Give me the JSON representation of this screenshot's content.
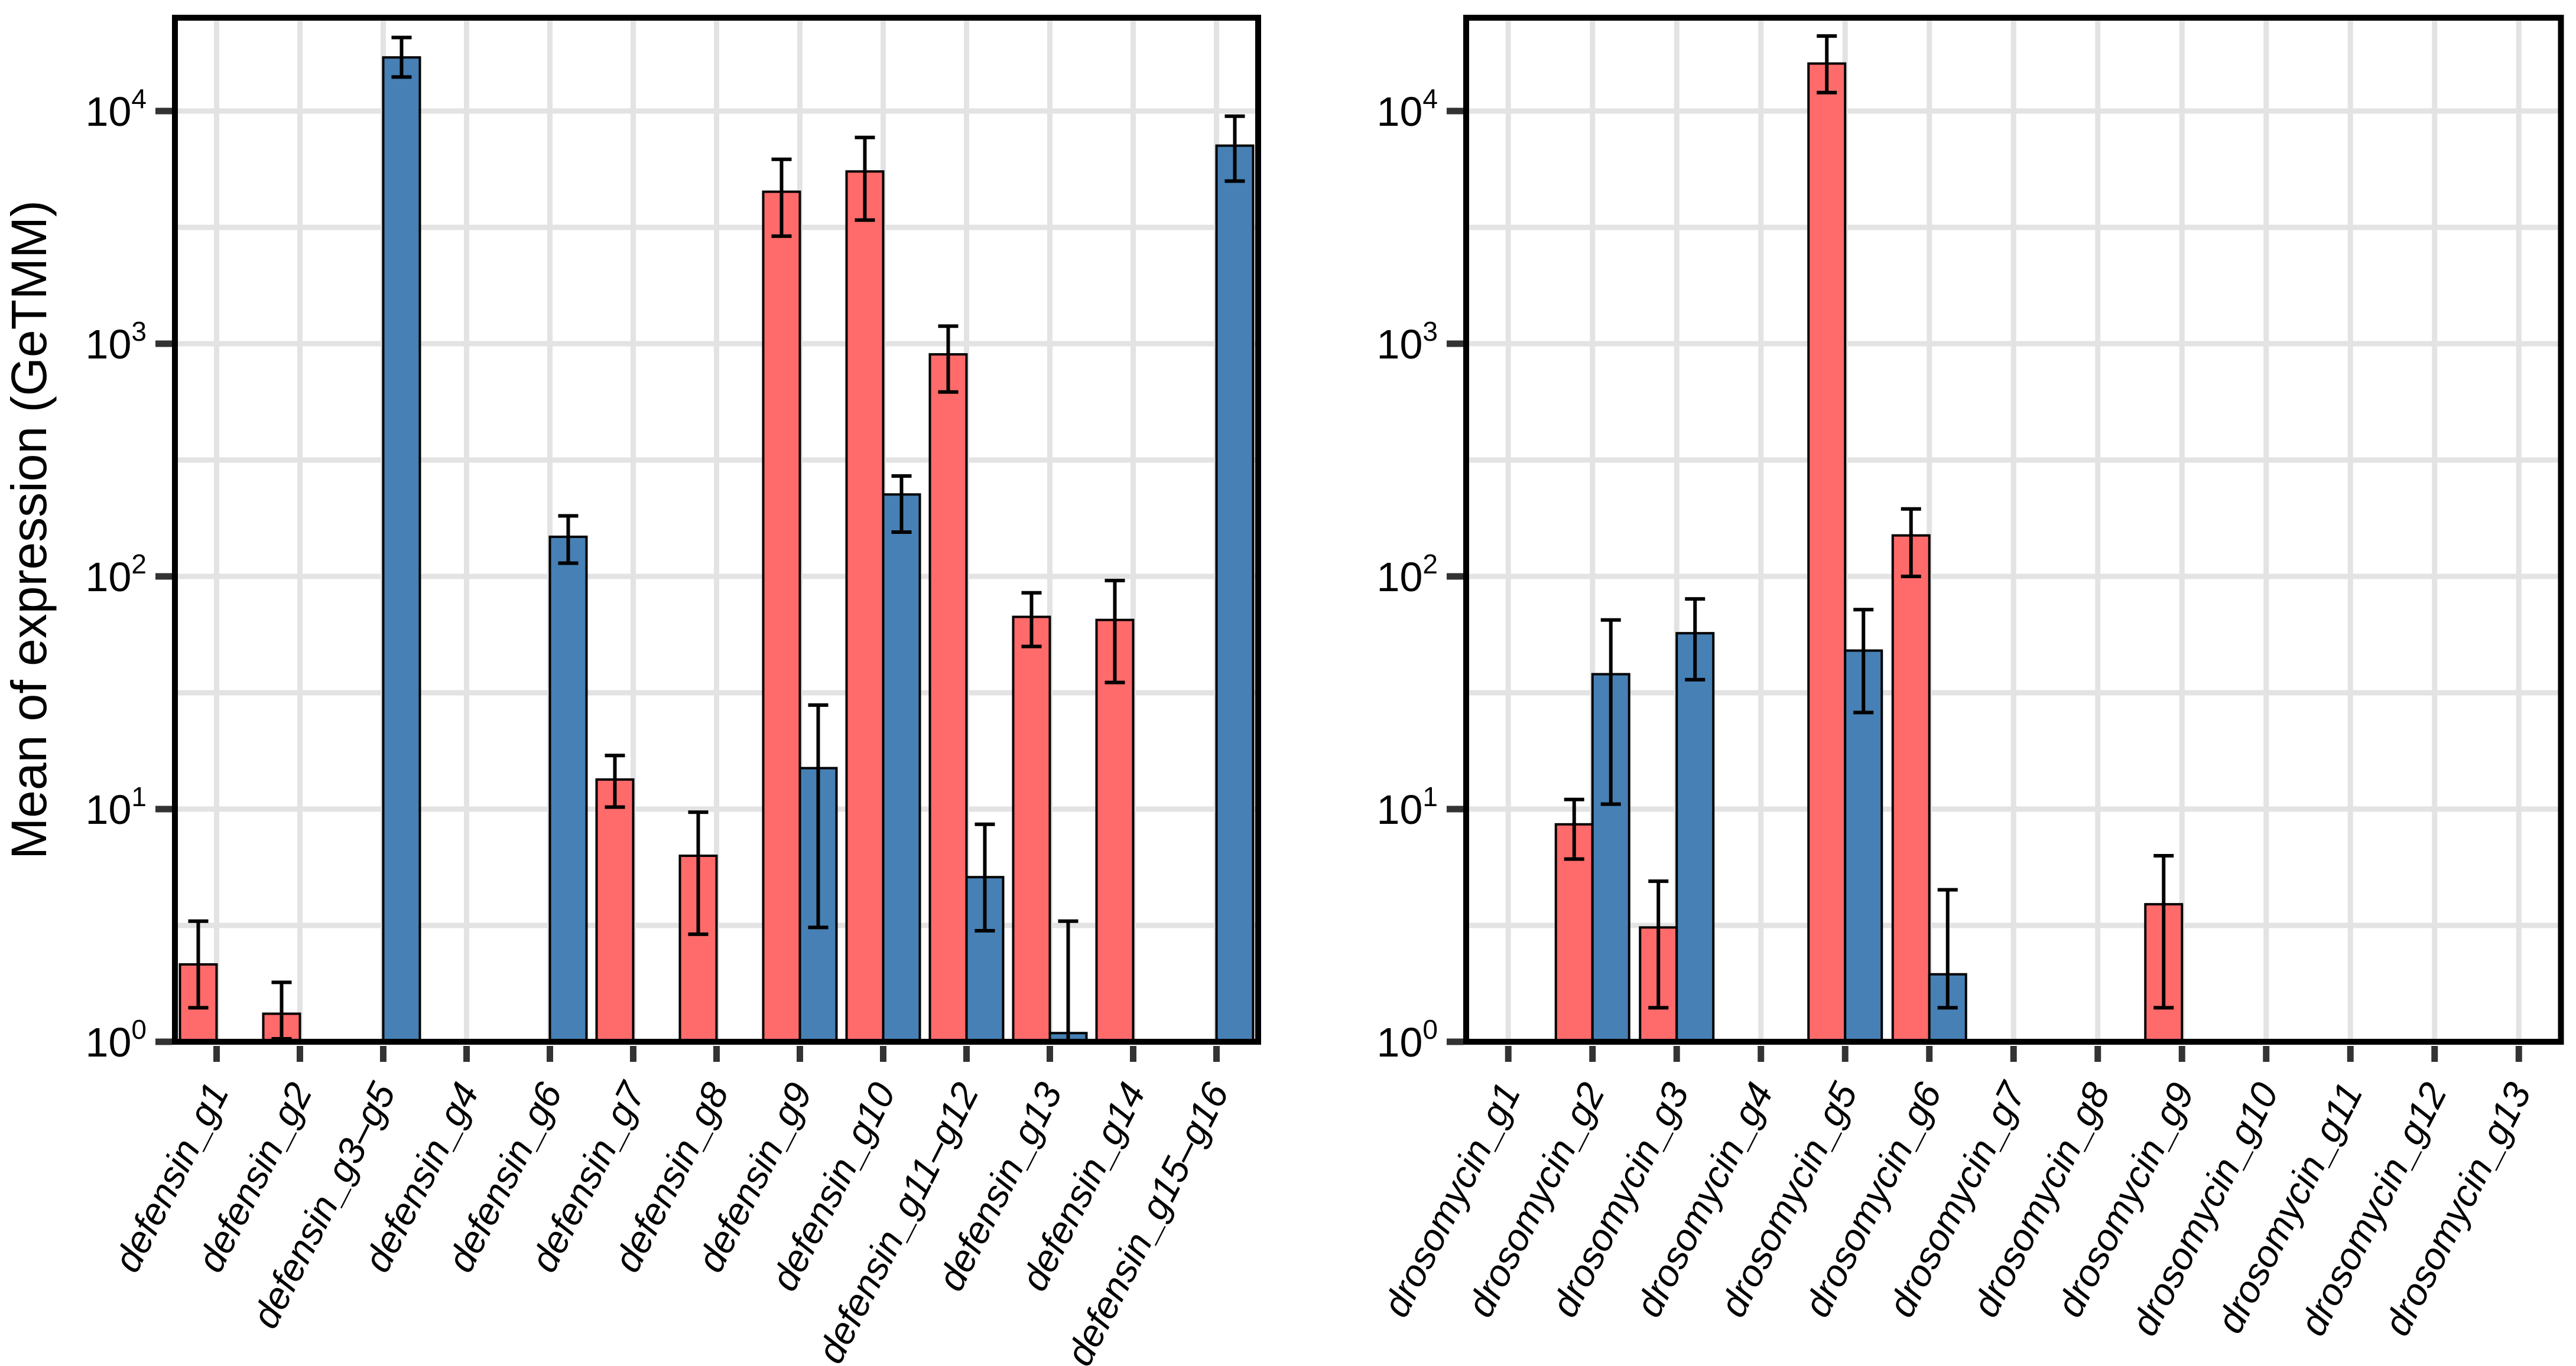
{
  "figure": {
    "ylabel": "Mean of expression (GeTMM)",
    "colors": {
      "red_series": "#FF6A6A",
      "blue_series": "#4680B4",
      "gridline": "#E3E3E3",
      "tick": "#333333",
      "bar_outline": "#000000",
      "panel_border": "#000000",
      "background": "#FFFFFF"
    },
    "y_tick_exponents": [
      0,
      1,
      2,
      3,
      4
    ]
  },
  "chart_data": [
    {
      "type": "bar",
      "panel": "defensin",
      "ylabel": "Mean of expression (GeTMM)",
      "yscale": "log10",
      "ylim": [
        1,
        28000
      ],
      "grid": true,
      "legend": "none",
      "y_tick_labels": [
        "10^0",
        "10^1",
        "10^2",
        "10^3",
        "10^4"
      ],
      "categories": [
        "defensin_g1",
        "defensin_g2",
        "defensin_g3–g5",
        "defensin_g4",
        "defensin_g6",
        "defensin_g7",
        "defensin_g8",
        "defensin_g9",
        "defensin_g10",
        "defensin_g11–g12",
        "defensin_g13",
        "defensin_g14",
        "defensin_g15–g16"
      ],
      "series": [
        {
          "name": "red",
          "color": "#FF6A6A",
          "values": [
            2.15,
            1.32,
            null,
            null,
            null,
            13.4,
            6.3,
            4500,
            5500,
            900,
            67,
            65,
            null
          ],
          "err_lo": [
            1.4,
            1.03,
            null,
            null,
            null,
            10.2,
            2.9,
            2900,
            3400,
            620,
            50,
            35,
            null
          ],
          "err_hi": [
            3.3,
            1.8,
            null,
            null,
            null,
            17,
            9.7,
            6200,
            7700,
            1190,
            85,
            96,
            null
          ]
        },
        {
          "name": "blue",
          "color": "#4680B4",
          "values": [
            null,
            null,
            17000,
            null,
            148,
            null,
            null,
            15,
            225,
            5.1,
            1.09,
            null,
            7100
          ],
          "err_lo": [
            null,
            null,
            14000,
            null,
            114,
            null,
            null,
            3.1,
            155,
            3.0,
            1.0,
            null,
            5000
          ],
          "err_hi": [
            null,
            null,
            20700,
            null,
            182,
            null,
            null,
            28,
            270,
            8.6,
            3.3,
            null,
            9500
          ]
        }
      ]
    },
    {
      "type": "bar",
      "panel": "drosomycin",
      "ylabel": "",
      "yscale": "log10",
      "ylim": [
        1,
        28000
      ],
      "grid": true,
      "legend": "none",
      "y_tick_labels": [
        "10^0",
        "10^1",
        "10^2",
        "10^3",
        "10^4"
      ],
      "categories": [
        "drosomycin_g1",
        "drosomycin_g2",
        "drosomycin_g3",
        "drosomycin_g4",
        "drosomycin_g5",
        "drosomycin_g6",
        "drosomycin_g7",
        "drosomycin_g8",
        "drosomycin_g9",
        "drosomycin_g10",
        "drosomycin_g11",
        "drosomycin_g12",
        "drosomycin_g13"
      ],
      "series": [
        {
          "name": "red",
          "color": "#FF6A6A",
          "values": [
            null,
            8.6,
            3.1,
            null,
            16000,
            150,
            null,
            null,
            3.9,
            null,
            null,
            null,
            null
          ],
          "err_lo": [
            null,
            6.1,
            1.4,
            null,
            12000,
            100,
            null,
            null,
            1.4,
            null,
            null,
            null,
            null
          ],
          "err_hi": [
            null,
            11,
            4.9,
            null,
            21000,
            195,
            null,
            null,
            6.3,
            null,
            null,
            null,
            null
          ]
        },
        {
          "name": "blue",
          "color": "#4680B4",
          "values": [
            null,
            38,
            57,
            null,
            48,
            1.95,
            null,
            null,
            null,
            null,
            null,
            null,
            null
          ],
          "err_lo": [
            null,
            10.5,
            36,
            null,
            26,
            1.4,
            null,
            null,
            null,
            null,
            null,
            null,
            null
          ],
          "err_hi": [
            null,
            65,
            80,
            null,
            72,
            4.5,
            null,
            null,
            null,
            null,
            null,
            null,
            null
          ]
        }
      ]
    }
  ]
}
